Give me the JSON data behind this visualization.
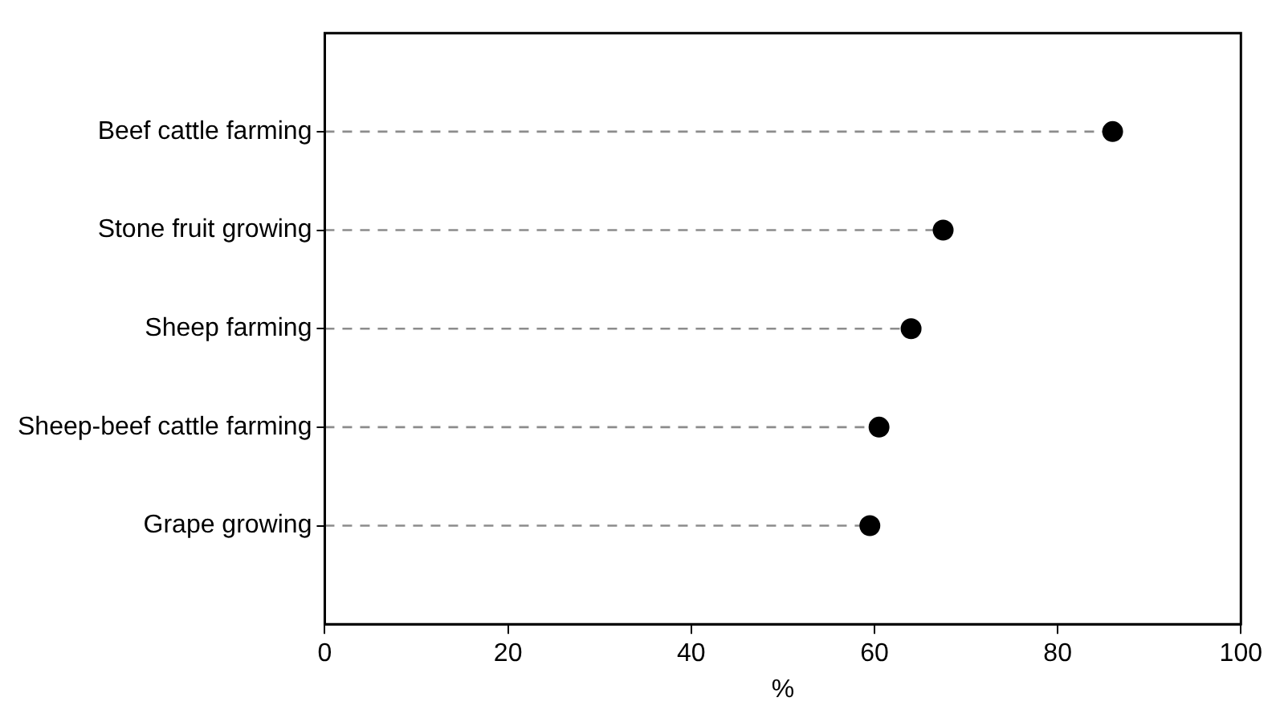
{
  "chart_data": {
    "type": "lollipop",
    "orientation": "horizontal",
    "categories": [
      "Beef cattle farming",
      "Stone fruit growing",
      "Sheep farming",
      "Sheep-beef cattle farming",
      "Grape growing"
    ],
    "values": [
      86,
      67.5,
      64,
      60.5,
      59.5
    ],
    "color": "#000000",
    "xlim": [
      0,
      100
    ],
    "xticks": [
      0,
      20,
      40,
      60,
      80,
      100
    ],
    "xlabel": "%",
    "grid": false,
    "legend": false,
    "marker": "circle",
    "line_style": "dashed"
  }
}
